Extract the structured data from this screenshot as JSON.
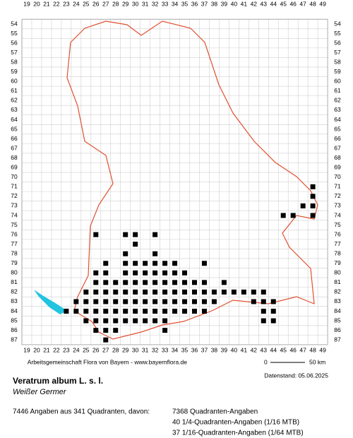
{
  "map": {
    "columns": [
      19,
      20,
      21,
      22,
      23,
      24,
      25,
      26,
      27,
      28,
      29,
      30,
      31,
      32,
      33,
      34,
      35,
      36,
      37,
      38,
      39,
      40,
      41,
      42,
      43,
      44,
      45,
      46,
      47,
      48,
      49
    ],
    "rows": [
      54,
      55,
      56,
      57,
      58,
      59,
      60,
      61,
      62,
      63,
      64,
      65,
      66,
      67,
      68,
      69,
      70,
      71,
      72,
      73,
      74,
      75,
      76,
      77,
      78,
      79,
      80,
      81,
      82,
      83,
      84,
      85,
      86,
      87
    ],
    "occurrences": [
      {
        "row": 71,
        "cols": [
          48
        ]
      },
      {
        "row": 72,
        "cols": [
          48
        ]
      },
      {
        "row": 73,
        "cols": [
          47,
          48
        ]
      },
      {
        "row": 74,
        "cols": [
          45,
          46,
          48
        ]
      },
      {
        "row": 76,
        "cols": [
          26,
          29,
          30,
          32
        ]
      },
      {
        "row": 77,
        "cols": [
          30
        ]
      },
      {
        "row": 78,
        "cols": [
          29,
          32
        ]
      },
      {
        "row": 79,
        "cols": [
          27,
          29,
          30,
          31,
          32,
          33,
          34,
          37
        ]
      },
      {
        "row": 80,
        "cols": [
          26,
          27,
          29,
          30,
          31,
          32,
          33,
          34,
          35
        ]
      },
      {
        "row": 81,
        "cols": [
          26,
          27,
          28,
          29,
          30,
          31,
          32,
          33,
          34,
          35,
          36,
          37,
          39
        ]
      },
      {
        "row": 82,
        "cols": [
          25,
          26,
          27,
          28,
          29,
          30,
          31,
          32,
          33,
          34,
          35,
          36,
          37,
          38,
          39,
          40,
          41,
          42,
          43
        ]
      },
      {
        "row": 83,
        "cols": [
          24,
          25,
          26,
          27,
          28,
          29,
          30,
          31,
          32,
          33,
          34,
          35,
          36,
          37,
          38,
          42,
          43,
          44
        ]
      },
      {
        "row": 84,
        "cols": [
          23,
          24,
          25,
          26,
          27,
          28,
          29,
          30,
          31,
          32,
          33,
          34,
          35,
          36,
          37,
          43,
          44
        ]
      },
      {
        "row": 85,
        "cols": [
          25,
          26,
          27,
          28,
          29,
          30,
          31,
          32,
          33,
          43,
          44
        ]
      },
      {
        "row": 86,
        "cols": [
          26,
          27,
          28,
          33
        ]
      },
      {
        "row": 87,
        "cols": [
          27
        ]
      }
    ]
  },
  "footer": {
    "credit": "Arbeitsgemeinschaft Flora von Bayern - www.bayernflora.de",
    "scale_start": "0",
    "scale_end": "50 km",
    "date": "Datenstand: 05.06.2025",
    "species": "Veratrum album L. s. l.",
    "common_name": "Weißer Germer",
    "summary": "7446 Angaben aus 341 Quadranten, davon:",
    "details": [
      "7368 Quadranten-Angaben",
      "40 1/4-Quadranten-Angaben (1/16 MTB)",
      "37 1/16-Quadranten-Angaben (1/64 MTB)"
    ]
  }
}
